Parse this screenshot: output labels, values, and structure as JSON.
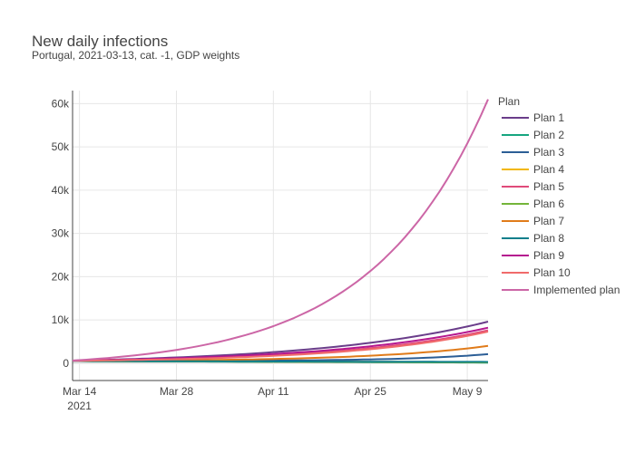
{
  "chart_data": {
    "type": "line",
    "title": "New daily infections",
    "subtitle": "Portugal, 2021-03-13, cat. -1, GDP weights",
    "xlabel": "",
    "ylabel": "",
    "x_start": "2021-03-13",
    "x_end": "2021-05-12",
    "x_ticks": [
      {
        "date": "2021-03-14",
        "label": "Mar 14",
        "sublabel": "2021"
      },
      {
        "date": "2021-03-28",
        "label": "Mar 28",
        "sublabel": ""
      },
      {
        "date": "2021-04-11",
        "label": "Apr 11",
        "sublabel": ""
      },
      {
        "date": "2021-04-25",
        "label": "Apr 25",
        "sublabel": ""
      },
      {
        "date": "2021-05-09",
        "label": "May 9",
        "sublabel": ""
      }
    ],
    "ylim": [
      -4000,
      63000
    ],
    "y_ticks": [
      {
        "value": 0,
        "label": "0"
      },
      {
        "value": 10000,
        "label": "10k"
      },
      {
        "value": 20000,
        "label": "20k"
      },
      {
        "value": 30000,
        "label": "30k"
      },
      {
        "value": 40000,
        "label": "40k"
      },
      {
        "value": 50000,
        "label": "50k"
      },
      {
        "value": 60000,
        "label": "60k"
      }
    ],
    "grid": true,
    "legend_title": "Plan",
    "legend_position": "right",
    "series": [
      {
        "name": "Plan 1",
        "color": "#6a3d8a",
        "start": 600,
        "end": 9600,
        "shape": 2.4
      },
      {
        "name": "Plan 2",
        "color": "#16a57f",
        "start": 500,
        "end": 150,
        "shape": 1.0
      },
      {
        "name": "Plan 3",
        "color": "#2c5e96",
        "start": 500,
        "end": 2100,
        "shape": 5.0
      },
      {
        "name": "Plan 4",
        "color": "#f2b705",
        "start": 500,
        "end": 250,
        "shape": 1.0
      },
      {
        "name": "Plan 5",
        "color": "#e04a7a",
        "start": 550,
        "end": 7600,
        "shape": 2.8
      },
      {
        "name": "Plan 6",
        "color": "#74b53a",
        "start": 500,
        "end": 200,
        "shape": 1.0
      },
      {
        "name": "Plan 7",
        "color": "#e07b1a",
        "start": 500,
        "end": 4000,
        "shape": 3.5
      },
      {
        "name": "Plan 8",
        "color": "#0f7f8c",
        "start": 500,
        "end": 300,
        "shape": 1.0
      },
      {
        "name": "Plan 9",
        "color": "#b5178f",
        "start": 600,
        "end": 8200,
        "shape": 2.6
      },
      {
        "name": "Plan 10",
        "color": "#f06b6b",
        "start": 550,
        "end": 7300,
        "shape": 3.0
      },
      {
        "name": "Implemented plan",
        "color": "#cc66a6",
        "start": 600,
        "end": 61000,
        "shape": 3.6
      }
    ]
  }
}
